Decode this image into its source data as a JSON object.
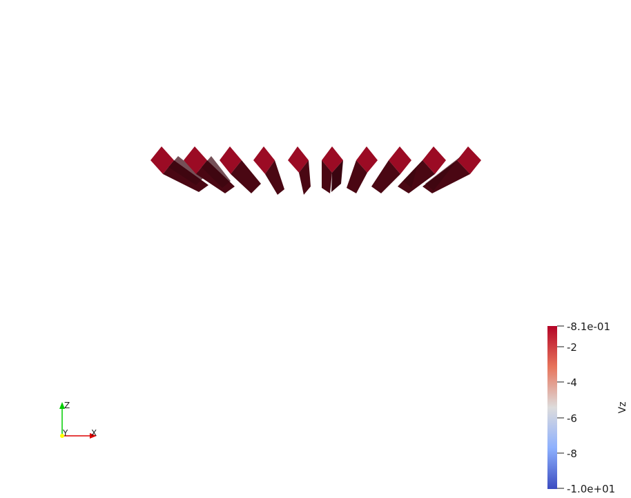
{
  "scene": {
    "background": "#ffffff",
    "object_color_light": "#9b0b24",
    "object_color_dark": "#4a0713"
  },
  "colorbar": {
    "title": "Vz",
    "colors": {
      "top": "#b40426",
      "upper": "#e7745b",
      "mid": "#dddcdc",
      "lower": "#8db0fe",
      "bottom": "#3b4cc0"
    },
    "tick_labels": [
      "-8.1e-01",
      "-2",
      "-4",
      "-6",
      "-8",
      "-1.0e+01"
    ]
  },
  "axes_triad": {
    "z_label": "Z",
    "y_label": "Y",
    "x_label": "X",
    "z_color": "#00cc00",
    "y_color": "#ffff00",
    "x_color": "#dd0000"
  }
}
